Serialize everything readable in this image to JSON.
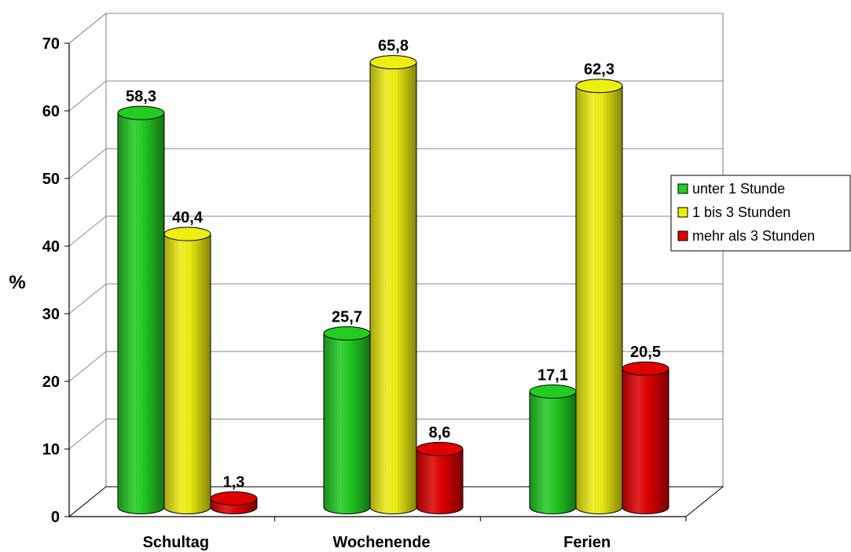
{
  "chart_data": {
    "type": "bar",
    "style": "3d-cylinder",
    "categories": [
      "Schultag",
      "Wochenende",
      "Ferien"
    ],
    "series": [
      {
        "name": "unter 1 Stunde",
        "color": "#22cc22",
        "values": [
          58.3,
          25.7,
          17.1
        ],
        "labels": [
          "58,3",
          "25,7",
          "17,1"
        ]
      },
      {
        "name": "1 bis 3 Stunden",
        "color": "#eeee11",
        "values": [
          40.4,
          65.8,
          62.3
        ],
        "labels": [
          "40,4",
          "65,8",
          "62,3"
        ]
      },
      {
        "name": "mehr als 3 Stunden",
        "color": "#e00000",
        "values": [
          1.3,
          8.6,
          20.5
        ],
        "labels": [
          "1,3",
          "8,6",
          "20,5"
        ]
      }
    ],
    "ylabel": "%",
    "ylim": [
      0,
      70
    ],
    "yticks": [
      0,
      10,
      20,
      30,
      40,
      50,
      60,
      70
    ],
    "grid": true,
    "legend_position": "right"
  }
}
